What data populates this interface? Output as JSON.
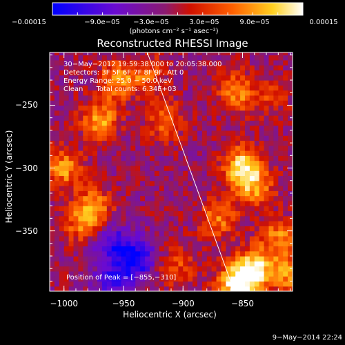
{
  "colorbar": {
    "ticks": [
      "−0.00015",
      "−9.0e−05",
      "−3.0e−05",
      "3.0e−05",
      "9.0e−05",
      "0.00015"
    ],
    "units": "(photons cm⁻² s⁻¹ asec⁻²)"
  },
  "chart_data": {
    "type": "heatmap",
    "title": "Reconstructed RHESSI Image",
    "xlabel": "Heliocentric X (arcsec)",
    "ylabel": "Heliocentric Y (arcsec)",
    "xlim": [
      -1012,
      -808
    ],
    "ylim": [
      -398,
      -208
    ],
    "xticks": [
      -1000,
      -950,
      -900,
      -850
    ],
    "xtick_labels": [
      "−1000",
      "−950",
      "−900",
      "−850"
    ],
    "yticks": [
      -250,
      -300,
      -350
    ],
    "ytick_labels": [
      "−250",
      "−300",
      "−350"
    ],
    "colormap": "IDL rainbow-hot (blue → purple → red → orange → yellow → white)",
    "value_range": [
      -0.00015,
      0.00015
    ],
    "peak": [
      -855,
      -310
    ],
    "limb_line": [
      [
        -930,
        -208
      ],
      [
        -857,
        -398
      ]
    ],
    "annotations": [
      "30−May−2012 19:59:38.000 to 20:05:38.000",
      "Detectors: 3F 5F 6F 7F 8F 9F, Att 0",
      "Energy Range: 25.0 − 50.0 keV",
      "Clean      Total counts: 6.34E+03"
    ],
    "peak_label": "Position of Peak = [−855,−310]",
    "sources": [
      {
        "x": -955,
        "y": -230,
        "v": 0.0001
      },
      {
        "x": -930,
        "y": -225,
        "v": 7e-05
      },
      {
        "x": -970,
        "y": -262,
        "v": 0.00011
      },
      {
        "x": -915,
        "y": -262,
        "v": 8e-05
      },
      {
        "x": -855,
        "y": -240,
        "v": 0.0001
      },
      {
        "x": -825,
        "y": -242,
        "v": 5e-05
      },
      {
        "x": -1000,
        "y": -300,
        "v": 0.0001
      },
      {
        "x": -975,
        "y": -330,
        "v": 9e-05
      },
      {
        "x": -985,
        "y": -345,
        "v": 8e-05
      },
      {
        "x": -850,
        "y": -298,
        "v": 0.000145
      },
      {
        "x": -840,
        "y": -315,
        "v": 0.0001
      },
      {
        "x": -870,
        "y": -340,
        "v": 9e-05
      },
      {
        "x": -820,
        "y": -355,
        "v": 9e-05
      },
      {
        "x": -840,
        "y": -380,
        "v": 0.00015
      },
      {
        "x": -855,
        "y": -392,
        "v": 0.00016
      },
      {
        "x": -810,
        "y": -385,
        "v": 0.0001
      },
      {
        "x": -905,
        "y": -378,
        "v": 6e-05
      },
      {
        "x": -940,
        "y": -372,
        "v": -0.00013
      },
      {
        "x": -960,
        "y": -360,
        "v": -9e-05
      },
      {
        "x": -960,
        "y": -390,
        "v": -8e-05
      }
    ]
  },
  "footer": "9−May−2014 22:24"
}
